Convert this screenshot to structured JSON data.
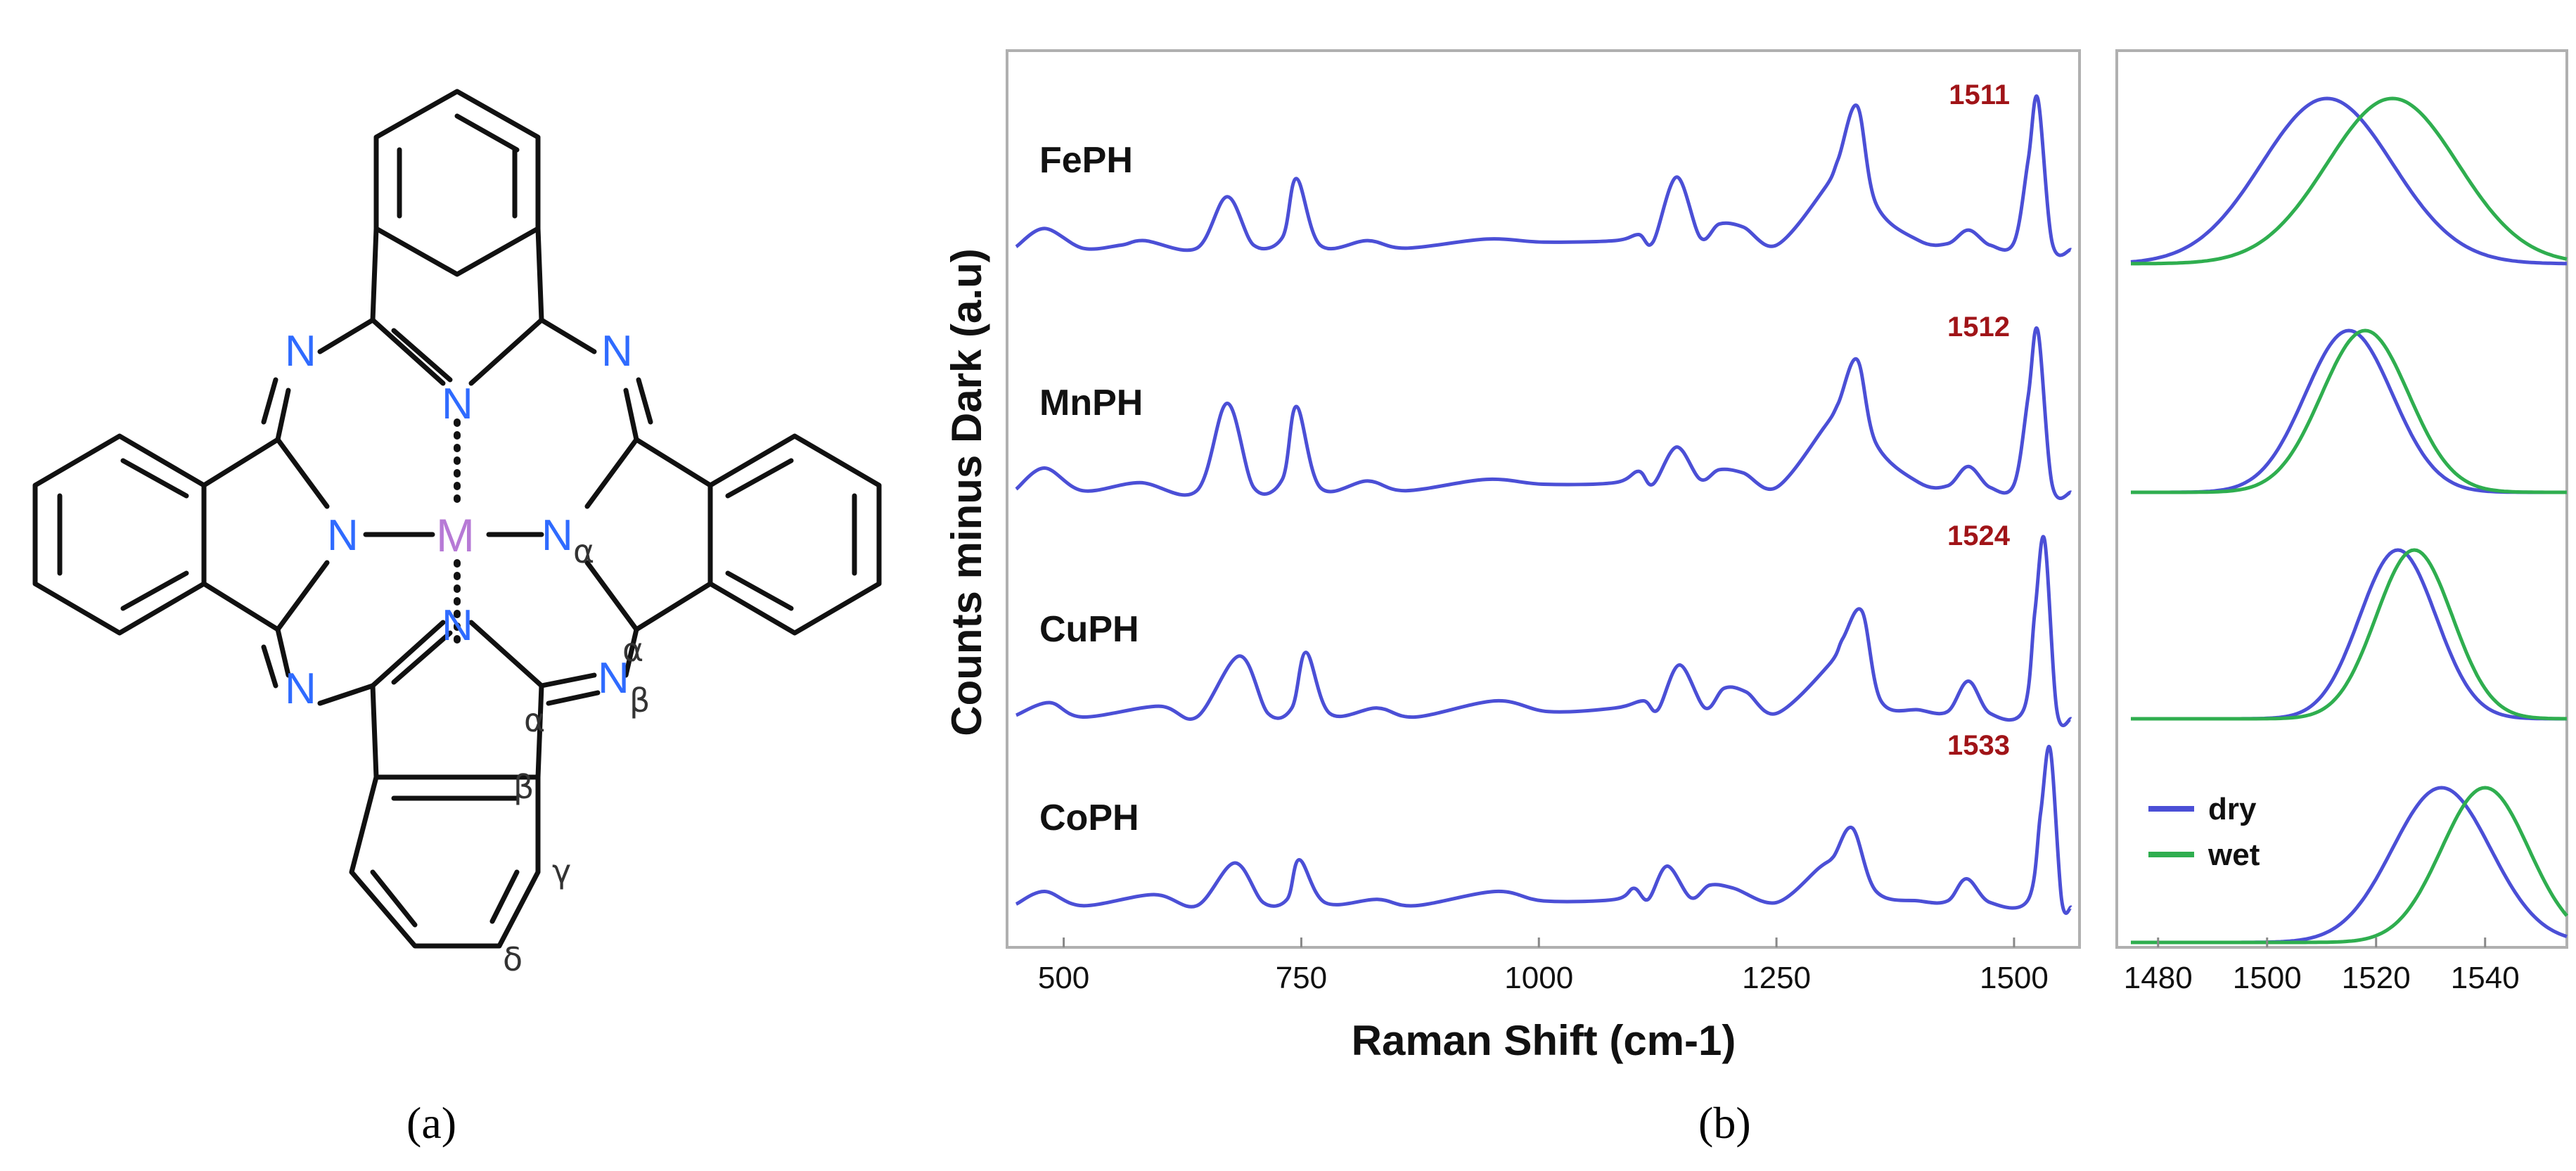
{
  "panel_a": {
    "caption": "(a)",
    "atoms": {
      "metal": "M",
      "nitrogen": "N",
      "alpha": "α",
      "beta": "β",
      "gamma": "γ",
      "delta": "δ"
    }
  },
  "panel_b": {
    "caption": "(b)"
  },
  "colors": {
    "dry": "#4b4fd6",
    "wet": "#2fae4f",
    "peak_label": "#a01418",
    "nitrogen": "#2f6bff",
    "metal": "#b77ad6"
  },
  "chart_data": [
    {
      "type": "line",
      "xlabel": "Raman Shift (cm-1)",
      "ylabel": "Counts minus Dark (a.u)",
      "xlim": [
        450,
        1560
      ],
      "xticks": [
        "500",
        "750",
        "1000",
        "1250",
        "1500"
      ],
      "grid": false,
      "series": [
        {
          "name": "FePH",
          "peak_label": "1511",
          "x": [
            450,
            480,
            520,
            560,
            585,
            640,
            672,
            700,
            730,
            745,
            770,
            820,
            860,
            945,
            1005,
            1080,
            1105,
            1120,
            1145,
            1170,
            1190,
            1215,
            1250,
            1300,
            1315,
            1335,
            1355,
            1400,
            1430,
            1452,
            1475,
            1500,
            1515,
            1525,
            1540,
            1560
          ],
          "y": [
            0.02,
            0.14,
            0.01,
            0.03,
            0.06,
            0.01,
            0.35,
            0.03,
            0.08,
            0.47,
            0.03,
            0.06,
            0.01,
            0.07,
            0.05,
            0.06,
            0.1,
            0.05,
            0.48,
            0.08,
            0.17,
            0.15,
            0.03,
            0.4,
            0.6,
            0.95,
            0.3,
            0.06,
            0.04,
            0.13,
            0.03,
            0.05,
            0.6,
            1.0,
            0.05,
            0.0
          ]
        },
        {
          "name": "MnPH",
          "peak_label": "1512",
          "x": [
            450,
            480,
            520,
            580,
            640,
            672,
            700,
            730,
            745,
            770,
            820,
            860,
            945,
            1005,
            1080,
            1105,
            1120,
            1145,
            1170,
            1190,
            1215,
            1250,
            1300,
            1315,
            1335,
            1355,
            1400,
            1430,
            1452,
            1475,
            1500,
            1515,
            1525,
            1540,
            1560
          ],
          "y": [
            0.02,
            0.15,
            0.01,
            0.06,
            0.01,
            0.55,
            0.03,
            0.08,
            0.53,
            0.03,
            0.07,
            0.01,
            0.08,
            0.05,
            0.06,
            0.13,
            0.05,
            0.28,
            0.08,
            0.14,
            0.12,
            0.03,
            0.4,
            0.55,
            0.82,
            0.3,
            0.06,
            0.04,
            0.16,
            0.03,
            0.05,
            0.6,
            1.0,
            0.05,
            0.0
          ]
        },
        {
          "name": "CuPH",
          "peak_label": "1524",
          "x": [
            450,
            485,
            520,
            600,
            640,
            685,
            715,
            740,
            755,
            780,
            830,
            870,
            955,
            1010,
            1080,
            1110,
            1125,
            1148,
            1175,
            1195,
            1218,
            1250,
            1305,
            1320,
            1340,
            1360,
            1400,
            1430,
            1452,
            1475,
            1510,
            1522,
            1532,
            1545,
            1560
          ],
          "y": [
            0.02,
            0.09,
            0.01,
            0.07,
            0.01,
            0.35,
            0.03,
            0.06,
            0.37,
            0.03,
            0.06,
            0.01,
            0.1,
            0.04,
            0.06,
            0.1,
            0.05,
            0.3,
            0.06,
            0.17,
            0.15,
            0.03,
            0.3,
            0.45,
            0.6,
            0.1,
            0.05,
            0.04,
            0.21,
            0.03,
            0.05,
            0.6,
            1.0,
            0.05,
            0.0
          ]
        },
        {
          "name": "CoPH",
          "peak_label": "1533",
          "x": [
            450,
            480,
            520,
            595,
            640,
            680,
            710,
            735,
            748,
            775,
            830,
            870,
            955,
            1005,
            1080,
            1100,
            1115,
            1135,
            1160,
            1180,
            1205,
            1250,
            1295,
            1310,
            1330,
            1355,
            1400,
            1430,
            1450,
            1475,
            1515,
            1528,
            1538,
            1550,
            1560
          ],
          "y": [
            0.02,
            0.1,
            0.01,
            0.08,
            0.01,
            0.28,
            0.03,
            0.05,
            0.3,
            0.03,
            0.05,
            0.01,
            0.1,
            0.04,
            0.05,
            0.12,
            0.05,
            0.26,
            0.06,
            0.14,
            0.12,
            0.03,
            0.25,
            0.32,
            0.5,
            0.1,
            0.04,
            0.04,
            0.18,
            0.03,
            0.05,
            0.6,
            1.0,
            0.05,
            0.0
          ]
        }
      ]
    },
    {
      "type": "line",
      "xlabel": "",
      "ylabel": "",
      "xlim": [
        1475,
        1555
      ],
      "xticks": [
        "1480",
        "1500",
        "1520",
        "1540"
      ],
      "legend": {
        "placement": "bottom-left",
        "entries": [
          "dry",
          "wet"
        ]
      },
      "panels": [
        {
          "dry_peak": 1511,
          "dry_width": 12,
          "wet_peak": 1523,
          "wet_width": 12
        },
        {
          "dry_peak": 1515,
          "dry_width": 8,
          "wet_peak": 1518,
          "wet_width": 8
        },
        {
          "dry_peak": 1524,
          "dry_width": 7,
          "wet_peak": 1527,
          "wet_width": 7
        },
        {
          "dry_peak": 1532,
          "dry_width": 9,
          "wet_peak": 1540,
          "wet_width": 8
        }
      ]
    }
  ]
}
